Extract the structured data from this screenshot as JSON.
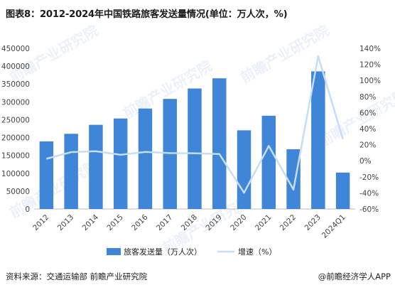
{
  "title": "图表8：2012-2024年中国铁路旅客发送量情况(单位：万人次，%)",
  "footer": {
    "source": "资料来源：交通运输部 前瞻产业研究院",
    "brand": "@前瞻经济学人APP"
  },
  "watermark": "前瞻产业研究院",
  "colors": {
    "bar": "#3f86d8",
    "line": "#c5ddf5",
    "grid": "#e6e6e6"
  },
  "chart_data": {
    "type": "bar",
    "categories": [
      "2012",
      "2013",
      "2014",
      "2015",
      "2016",
      "2017",
      "2018",
      "2019",
      "2020",
      "2021",
      "2022",
      "2023",
      "2024Q1"
    ],
    "series": [
      {
        "name": "旅客发送量（万人次）",
        "type": "bar",
        "axis": "left",
        "values": [
          189337,
          210597,
          235704,
          253484,
          281405,
          308379,
          337495,
          366002,
          220350,
          261171,
          167296,
          385535,
          102000
        ]
      },
      {
        "name": "增速（%）",
        "type": "line",
        "axis": "right",
        "values": [
          2.5,
          10.8,
          11.9,
          7.5,
          11.0,
          9.6,
          9.4,
          8.4,
          -39.8,
          18.5,
          -35.9,
          130.4,
          27.0
        ]
      }
    ],
    "y_left": {
      "min": 0,
      "max": 450000,
      "ticks": [
        0,
        50000,
        100000,
        150000,
        200000,
        250000,
        300000,
        350000,
        400000,
        450000
      ]
    },
    "y_right": {
      "min": -60,
      "max": 140,
      "ticks": [
        "-60%",
        "-40%",
        "-20%",
        "0%",
        "20%",
        "40%",
        "60%",
        "80%",
        "100%",
        "120%",
        "140%"
      ]
    },
    "legend_position": "bottom-center",
    "grid": false
  }
}
